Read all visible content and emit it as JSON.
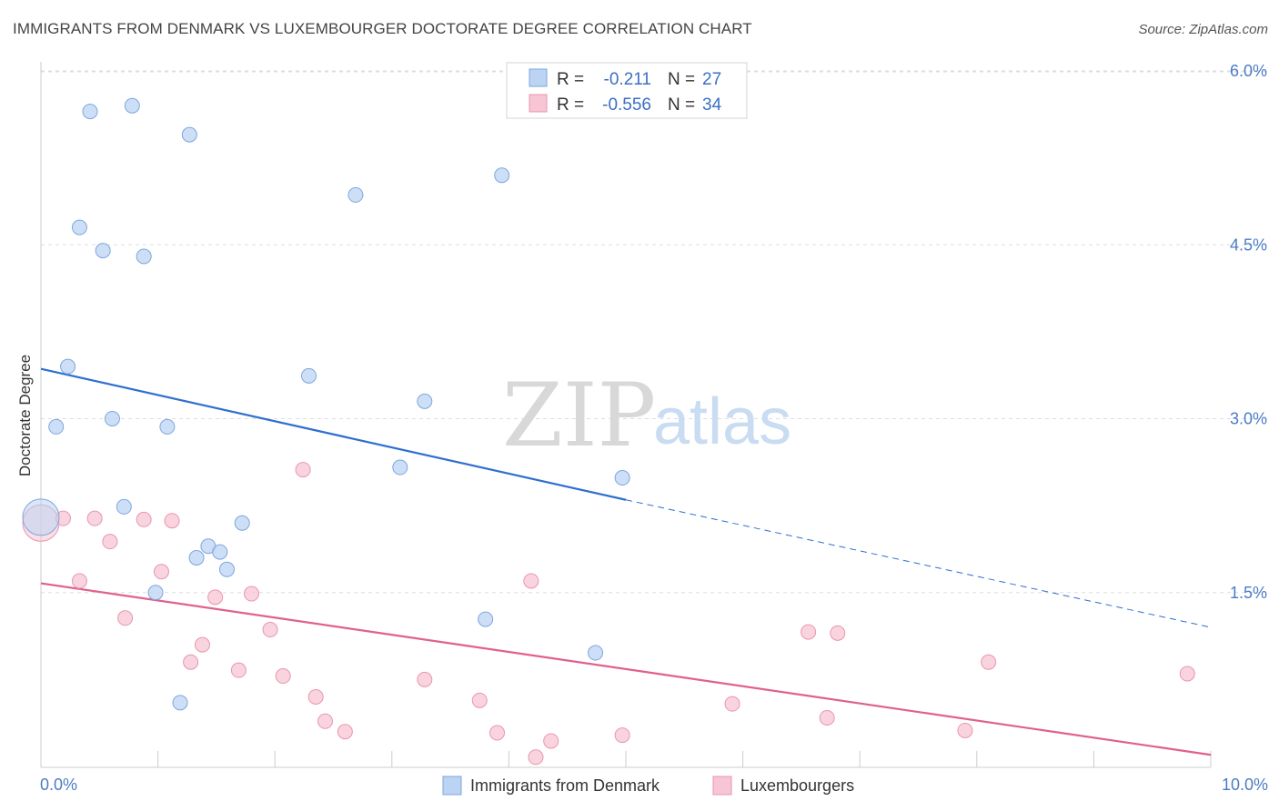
{
  "header": {
    "title": "IMMIGRANTS FROM DENMARK VS LUXEMBOURGER DOCTORATE DEGREE CORRELATION CHART",
    "source": "Source: ZipAtlas.com"
  },
  "watermark": {
    "zip": "ZIP",
    "atlas": "atlas"
  },
  "legend": {
    "row1": {
      "r_label": "R =",
      "r_value": "-0.211",
      "n_label": "N =",
      "n_value": "27"
    },
    "row2": {
      "r_label": "R =",
      "r_value": "-0.556",
      "n_label": "N =",
      "n_value": "34"
    }
  },
  "colors": {
    "blue_fill": "#bcd4f3",
    "blue_stroke": "#7ea6dc",
    "blue_line": "#2f6fd0",
    "pink_fill": "#f7c5d4",
    "pink_stroke": "#e995b0",
    "pink_line": "#e0608e",
    "grid": "#dddddd",
    "axis_text": "#4a7cc7"
  },
  "chart_data": {
    "type": "scatter",
    "title": "IMMIGRANTS FROM DENMARK VS LUXEMBOURGER DOCTORATE DEGREE CORRELATION CHART",
    "xlabel": "",
    "ylabel": "Doctorate Degree",
    "xlim": [
      0,
      10
    ],
    "ylim": [
      0,
      6.2
    ],
    "x_tick_labels": [
      "0.0%",
      "10.0%"
    ],
    "y_ticks": [
      1.5,
      3.0,
      4.5,
      6.0
    ],
    "y_tick_labels": [
      "1.5%",
      "3.0%",
      "4.5%",
      "6.0%"
    ],
    "grid": true,
    "legend_position": "top-center",
    "series": [
      {
        "name": "Immigrants from Denmark",
        "r": -0.211,
        "n": 27,
        "points": [
          [
            0.0,
            2.15
          ],
          [
            0.42,
            5.65
          ],
          [
            0.78,
            5.7
          ],
          [
            1.27,
            5.45
          ],
          [
            0.33,
            4.65
          ],
          [
            0.53,
            4.45
          ],
          [
            0.88,
            4.4
          ],
          [
            2.69,
            4.93
          ],
          [
            3.94,
            5.1
          ],
          [
            0.23,
            3.45
          ],
          [
            0.13,
            2.93
          ],
          [
            0.61,
            3.0
          ],
          [
            1.08,
            2.93
          ],
          [
            2.29,
            3.37
          ],
          [
            3.28,
            3.15
          ],
          [
            3.07,
            2.58
          ],
          [
            4.97,
            2.49
          ],
          [
            0.71,
            2.24
          ],
          [
            1.72,
            2.1
          ],
          [
            1.43,
            1.9
          ],
          [
            1.53,
            1.85
          ],
          [
            1.33,
            1.8
          ],
          [
            1.59,
            1.7
          ],
          [
            0.98,
            1.5
          ],
          [
            3.8,
            1.27
          ],
          [
            4.74,
            0.98
          ],
          [
            1.19,
            0.55
          ]
        ],
        "trend": {
          "x": [
            0.0,
            5.0
          ],
          "y": [
            3.43,
            2.3
          ]
        },
        "trend_extension": {
          "x": [
            5.0,
            10.0
          ],
          "y": [
            2.3,
            1.2
          ]
        }
      },
      {
        "name": "Luxembourgers",
        "r": -0.556,
        "n": 34,
        "points": [
          [
            0.0,
            2.1
          ],
          [
            0.19,
            2.14
          ],
          [
            0.46,
            2.14
          ],
          [
            0.88,
            2.13
          ],
          [
            1.12,
            2.12
          ],
          [
            0.59,
            1.94
          ],
          [
            0.33,
            1.6
          ],
          [
            1.03,
            1.68
          ],
          [
            0.72,
            1.28
          ],
          [
            1.49,
            1.46
          ],
          [
            1.8,
            1.49
          ],
          [
            2.24,
            2.56
          ],
          [
            4.19,
            1.6
          ],
          [
            1.96,
            1.18
          ],
          [
            1.38,
            1.05
          ],
          [
            1.28,
            0.9
          ],
          [
            1.69,
            0.83
          ],
          [
            2.07,
            0.78
          ],
          [
            3.28,
            0.75
          ],
          [
            2.35,
            0.6
          ],
          [
            3.75,
            0.57
          ],
          [
            2.43,
            0.39
          ],
          [
            2.6,
            0.3
          ],
          [
            3.9,
            0.29
          ],
          [
            4.36,
            0.22
          ],
          [
            4.23,
            0.08
          ],
          [
            4.97,
            0.27
          ],
          [
            6.56,
            1.16
          ],
          [
            6.81,
            1.15
          ],
          [
            5.91,
            0.54
          ],
          [
            6.72,
            0.42
          ],
          [
            8.1,
            0.9
          ],
          [
            7.9,
            0.31
          ],
          [
            9.8,
            0.8
          ]
        ],
        "trend": {
          "x": [
            0.0,
            10.0
          ],
          "y": [
            1.58,
            0.1
          ]
        }
      }
    ]
  }
}
